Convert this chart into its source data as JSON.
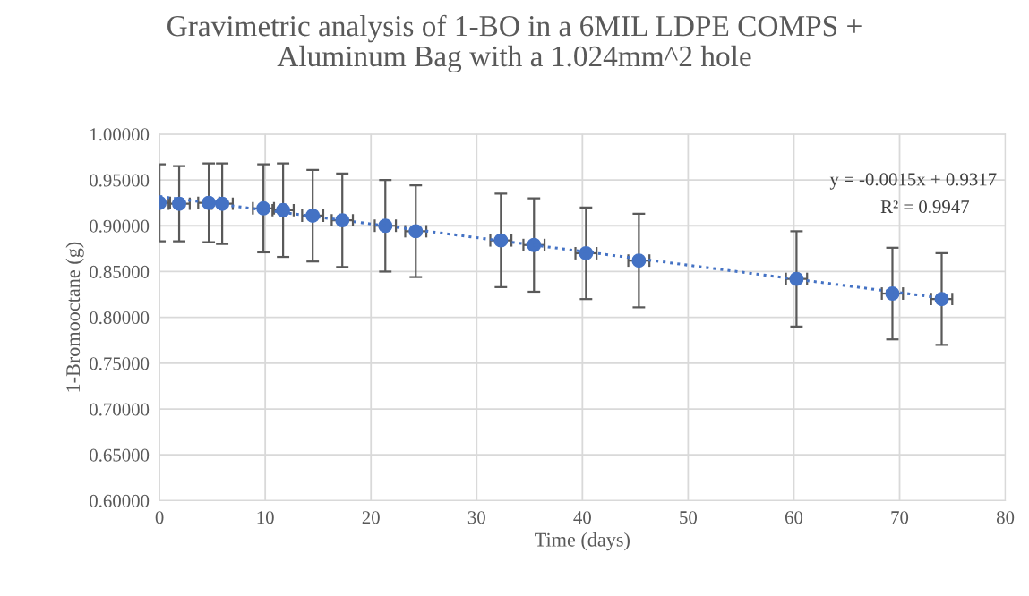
{
  "chart_data": {
    "type": "scatter",
    "title": "Gravimetric analysis of 1-BO in a 6MIL LDPE COMPS +\nAluminum Bag with a 1.024mm^2 hole",
    "xlabel": "Time (days)",
    "ylabel": "1-Bromooctane (g)",
    "series": [
      {
        "color": "#4472c4",
        "x": [
          0,
          1.86,
          4.66,
          5.93,
          9.83,
          11.69,
          14.49,
          17.29,
          21.36,
          24.24,
          32.29,
          35.42,
          40.34,
          45.34,
          60.25,
          69.32,
          73.98
        ],
        "values": [
          0.925,
          0.924,
          0.925,
          0.924,
          0.919,
          0.917,
          0.911,
          0.906,
          0.9,
          0.894,
          0.884,
          0.879,
          0.87,
          0.862,
          0.842,
          0.826,
          0.82
        ],
        "errors": [
          0.042,
          0.041,
          0.043,
          0.044,
          0.048,
          0.051,
          0.05,
          0.051,
          0.05,
          0.05,
          0.051,
          0.051,
          0.05,
          0.051,
          0.052,
          0.05,
          0.05
        ],
        "xerrors": [
          1.0,
          1.0,
          1.0,
          1.0,
          1.0,
          1.0,
          1.0,
          1.0,
          1.0,
          1.0,
          1.0,
          1.0,
          1.0,
          1.0,
          1.0,
          1.0,
          1.0
        ]
      },
      {
        "type": "line",
        "color": "#4472c4",
        "line_style": "dotted",
        "marker": "none",
        "x": [
          0,
          74
        ],
        "values": [
          0.932,
          0.821
        ]
      }
    ],
    "marker": "circle",
    "xlim": [
      0,
      80
    ],
    "xticks": [
      0,
      10,
      20,
      30,
      40,
      50,
      60,
      70,
      80
    ],
    "ylim": [
      0.6,
      1.0
    ],
    "yticks": [
      {
        "value": 0.6,
        "label": "0.60000"
      },
      {
        "value": 0.65,
        "label": "0.65000"
      },
      {
        "value": 0.7,
        "label": "0.70000"
      },
      {
        "value": 0.75,
        "label": "0.75000"
      },
      {
        "value": 0.8,
        "label": "0.80000"
      },
      {
        "value": 0.85,
        "label": "0.85000"
      },
      {
        "value": 0.9,
        "label": "0.90000"
      },
      {
        "value": 0.95,
        "label": "0.95000"
      },
      {
        "value": 1.0,
        "label": "1.00000"
      }
    ],
    "grid": true,
    "annotations": [
      "y = -0.0015x + 0.9317",
      "R² = 0.9947"
    ]
  }
}
